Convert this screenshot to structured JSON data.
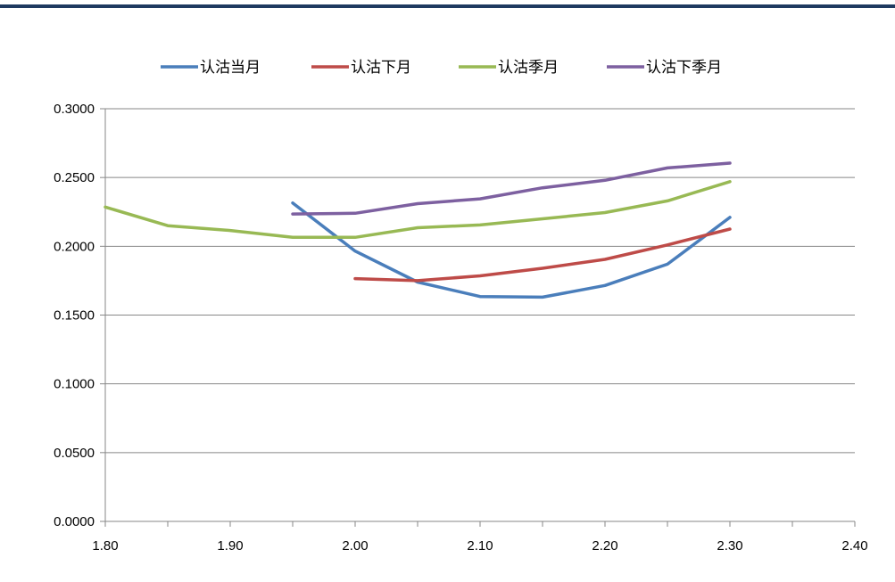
{
  "chart_data": {
    "type": "line",
    "title": "",
    "xlabel": "",
    "ylabel": "",
    "xlim": [
      1.8,
      2.4
    ],
    "ylim": [
      0,
      0.3
    ],
    "x_ticks": [
      1.8,
      1.85,
      1.9,
      1.95,
      2.0,
      2.05,
      2.1,
      2.15,
      2.2,
      2.25,
      2.3,
      2.35,
      2.4
    ],
    "x_tick_labels": [
      "1.80",
      "1.90",
      "2.00",
      "2.10",
      "2.20",
      "2.30",
      "2.40"
    ],
    "x_tick_label_values": [
      1.8,
      1.9,
      2.0,
      2.1,
      2.2,
      2.3,
      2.4
    ],
    "y_tick_labels": [
      "0.0000",
      "0.0500",
      "0.1000",
      "0.1500",
      "0.2000",
      "0.2500",
      "0.3000"
    ],
    "y_tick_label_values": [
      0,
      0.05,
      0.1,
      0.15,
      0.2,
      0.25,
      0.3
    ],
    "grid": "horizontal",
    "legend_position": "top-center",
    "series": [
      {
        "name": "认沽当月",
        "color": "#4a7ebb",
        "points": [
          [
            1.95,
            0.2315
          ],
          [
            2.0,
            0.1965
          ],
          [
            2.05,
            0.174
          ],
          [
            2.1,
            0.1635
          ],
          [
            2.15,
            0.163
          ],
          [
            2.2,
            0.1715
          ],
          [
            2.25,
            0.187
          ],
          [
            2.3,
            0.221
          ]
        ]
      },
      {
        "name": "认沽下月",
        "color": "#be4b48",
        "points": [
          [
            2.0,
            0.1765
          ],
          [
            2.05,
            0.175
          ],
          [
            2.1,
            0.1785
          ],
          [
            2.15,
            0.184
          ],
          [
            2.2,
            0.1905
          ],
          [
            2.25,
            0.201
          ],
          [
            2.3,
            0.2125
          ]
        ]
      },
      {
        "name": "认沽季月",
        "color": "#98b954",
        "points": [
          [
            1.8,
            0.2285
          ],
          [
            1.85,
            0.215
          ],
          [
            1.9,
            0.2115
          ],
          [
            1.95,
            0.2065
          ],
          [
            2.0,
            0.2065
          ],
          [
            2.05,
            0.2135
          ],
          [
            2.1,
            0.2155
          ],
          [
            2.15,
            0.22
          ],
          [
            2.2,
            0.2245
          ],
          [
            2.25,
            0.233
          ],
          [
            2.3,
            0.247
          ]
        ]
      },
      {
        "name": "认沽下季月",
        "color": "#7d60a0",
        "points": [
          [
            1.95,
            0.2235
          ],
          [
            2.0,
            0.224
          ],
          [
            2.05,
            0.231
          ],
          [
            2.1,
            0.2345
          ],
          [
            2.15,
            0.2425
          ],
          [
            2.2,
            0.248
          ],
          [
            2.25,
            0.257
          ],
          [
            2.3,
            0.2605
          ]
        ]
      }
    ]
  }
}
